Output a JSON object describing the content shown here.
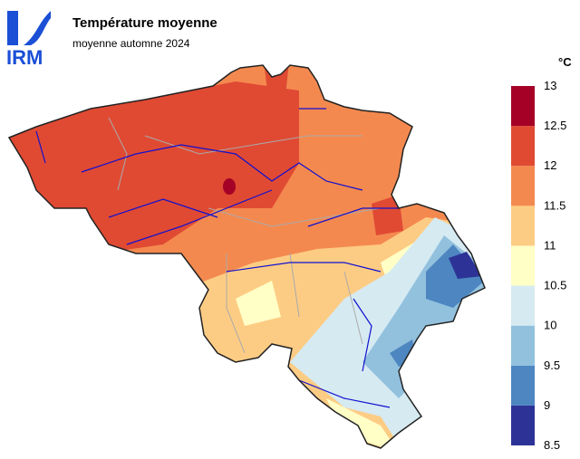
{
  "header": {
    "logo": "IRM",
    "title": "Température moyenne",
    "subtitle": "moyenne automne 2024"
  },
  "legend": {
    "unit": "°C",
    "ticks": [
      8.5,
      9,
      9.5,
      10,
      10.5,
      11,
      11.5,
      12,
      12.5,
      13
    ],
    "colors": [
      "#2d3396",
      "#4d86c0",
      "#92c1de",
      "#d6eaf2",
      "#ffffc6",
      "#fdcc84",
      "#f4894f",
      "#e04a33",
      "#a50026"
    ]
  }
}
